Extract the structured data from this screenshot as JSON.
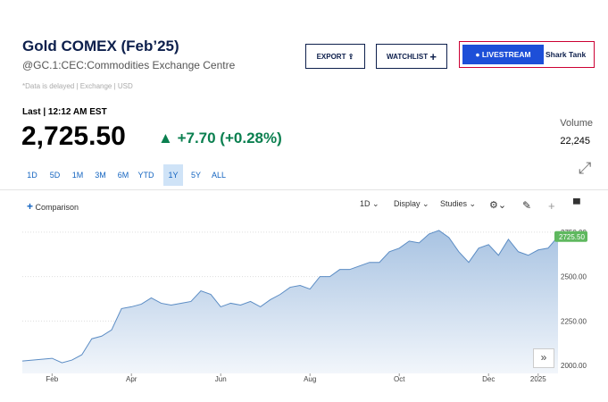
{
  "header": {
    "title": "Gold COMEX (Feb’25)",
    "subtitle": "@GC.1:CEC:Commodities Exchange Centre",
    "note": "*Data is delayed | Exchange | USD",
    "buttons": [
      "EXPORT",
      "WATCHLIST",
      "LIVESTREAM",
      "Shark Tank"
    ]
  },
  "quote": {
    "last_label": "Last | 12:12 AM EST",
    "price": "2,725.50",
    "change": "+7.70 (+0.28%)",
    "volume_label": "Volume",
    "volume": "22,245"
  },
  "ranges": [
    "1D",
    "5D",
    "1M",
    "3M",
    "6M",
    "YTD",
    "1Y",
    "5Y",
    "ALL"
  ],
  "active_range": "1Y",
  "toolbar": [
    "Comparison",
    "1D",
    "Display",
    "Studies"
  ],
  "chart_data": {
    "type": "area",
    "color": "#5b8cc4",
    "categories": [
      null,
      null,
      null,
      "Feb",
      null,
      null,
      null,
      null,
      null,
      null,
      null,
      "Apr",
      null,
      null,
      null,
      null,
      null,
      null,
      null,
      null,
      "Jun",
      null,
      null,
      null,
      null,
      null,
      null,
      null,
      null,
      "Aug",
      null,
      null,
      null,
      null,
      null,
      null,
      null,
      null,
      "Oct",
      null,
      null,
      null,
      null,
      null,
      null,
      null,
      null,
      "Dec",
      null,
      null,
      null,
      null,
      "2025",
      null,
      null
    ],
    "values": [
      2025,
      2030,
      2035,
      2040,
      2015,
      2030,
      2060,
      2150,
      2165,
      2200,
      2320,
      2330,
      2345,
      2380,
      2350,
      2340,
      2350,
      2360,
      2420,
      2400,
      2330,
      2350,
      2340,
      2360,
      2330,
      2370,
      2400,
      2440,
      2450,
      2430,
      2500,
      2500,
      2540,
      2540,
      2560,
      2580,
      2580,
      2640,
      2660,
      2700,
      2690,
      2740,
      2760,
      2720,
      2640,
      2580,
      2660,
      2680,
      2620,
      2710,
      2640,
      2620,
      2650,
      2660,
      2725.5
    ],
    "ylim": [
      1955,
      2835
    ],
    "yticks": [
      {
        "value": 2000,
        "label": "2000.00"
      },
      {
        "value": 2250,
        "label": "2250.00"
      },
      {
        "value": 2500,
        "label": "2500.00"
      },
      {
        "value": 2750,
        "label": "2750.00"
      }
    ],
    "price_tag": {
      "value": 2725.5,
      "label": "2725.50"
    },
    "tag_color": "#5fb85f",
    "grid": true
  }
}
